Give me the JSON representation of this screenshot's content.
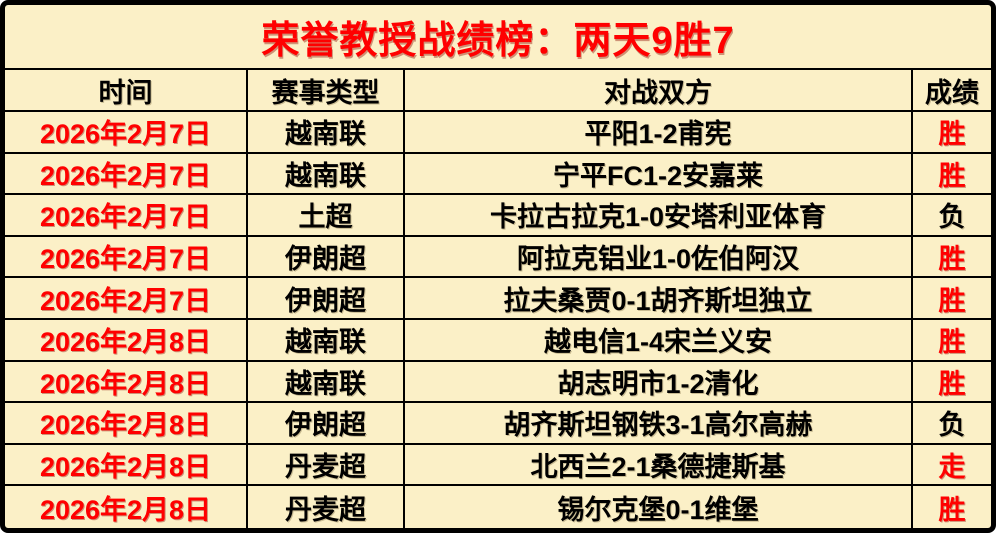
{
  "title": "荣誉教授战绩榜：两天9胜7",
  "columns": [
    "时间",
    "赛事类型",
    "对战双方",
    "成绩"
  ],
  "rows": [
    {
      "date": "2026年2月7日",
      "league": "越南联",
      "match": "平阳1-2甫宪",
      "result": "胜",
      "result_color": "red"
    },
    {
      "date": "2026年2月7日",
      "league": "越南联",
      "match": "宁平FC1-2安嘉莱",
      "result": "胜",
      "result_color": "red"
    },
    {
      "date": "2026年2月7日",
      "league": "土超",
      "match": "卡拉古拉克1-0安塔利亚体育",
      "result": "负",
      "result_color": "black"
    },
    {
      "date": "2026年2月7日",
      "league": "伊朗超",
      "match": "阿拉克铝业1-0佐伯阿汉",
      "result": "胜",
      "result_color": "red"
    },
    {
      "date": "2026年2月7日",
      "league": "伊朗超",
      "match": "拉夫桑贾0-1胡齐斯坦独立",
      "result": "胜",
      "result_color": "red"
    },
    {
      "date": "2026年2月8日",
      "league": "越南联",
      "match": "越电信1-4宋兰义安",
      "result": "胜",
      "result_color": "red"
    },
    {
      "date": "2026年2月8日",
      "league": "越南联",
      "match": "胡志明市1-2清化",
      "result": "胜",
      "result_color": "red"
    },
    {
      "date": "2026年2月8日",
      "league": "伊朗超",
      "match": "胡齐斯坦钢铁3-1高尔高赫",
      "result": "负",
      "result_color": "black"
    },
    {
      "date": "2026年2月8日",
      "league": "丹麦超",
      "match": "北西兰2-1桑德捷斯基",
      "result": "走",
      "result_color": "red"
    },
    {
      "date": "2026年2月8日",
      "league": "丹麦超",
      "match": "锡尔克堡0-1维堡",
      "result": "胜",
      "result_color": "red"
    }
  ],
  "colors": {
    "background": "#FBF0C7",
    "accent_red": "#FF0000",
    "text_black": "#000000",
    "border": "#000000"
  }
}
